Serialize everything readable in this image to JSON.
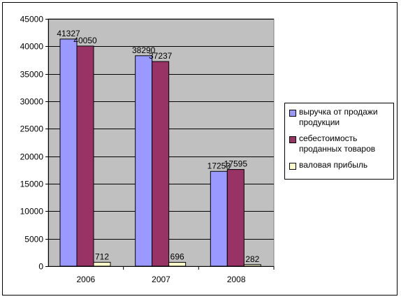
{
  "chart_data": {
    "type": "bar",
    "categories": [
      "2006",
      "2007",
      "2008"
    ],
    "series": [
      {
        "name": "выручка от продажи продукции",
        "values": [
          41327,
          38290,
          17253
        ],
        "color": "#9999ff"
      },
      {
        "name": "себестоимость проданных товаров",
        "values": [
          40050,
          37237,
          17595
        ],
        "color": "#993366"
      },
      {
        "name": "валовая прибыль",
        "values": [
          712,
          696,
          282
        ],
        "color": "#ffffcc"
      }
    ],
    "data_labels": [
      [
        "41327",
        "40050",
        "712"
      ],
      [
        "38290",
        "37237",
        "696"
      ],
      [
        "17253",
        "17595",
        "282"
      ]
    ],
    "yticks": [
      "0",
      "5000",
      "10000",
      "15000",
      "20000",
      "25000",
      "30000",
      "35000",
      "40000",
      "45000"
    ],
    "ylim": [
      0,
      45000
    ],
    "grid": true,
    "legend_position": "right",
    "plot_background": "#c0c0c0"
  }
}
